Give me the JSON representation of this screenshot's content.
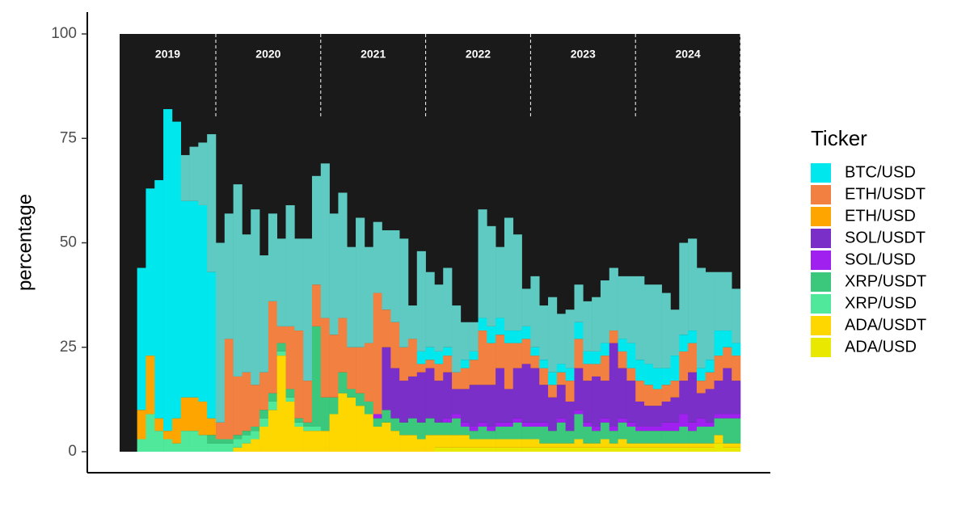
{
  "chart_data": {
    "type": "stacked-bar",
    "ylabel": "percentage",
    "legend_title": "Ticker",
    "legend": "right",
    "ylim": [
      0,
      100
    ],
    "yticks": [
      0,
      25,
      50,
      75,
      100
    ],
    "facets": [
      "2019",
      "2020",
      "2021",
      "2022",
      "2023",
      "2024"
    ],
    "series": [
      {
        "name": "BTC/USD",
        "color": "#00e8ee",
        "values": [
          [
            0,
            0,
            34,
            40,
            57,
            77,
            71,
            47,
            47,
            47,
            35
          ],
          [
            0,
            0,
            0,
            0,
            0,
            0,
            0,
            0,
            0,
            0,
            0,
            0
          ],
          [
            0,
            0,
            0,
            0,
            0,
            0,
            0,
            0,
            0,
            0,
            0,
            3
          ],
          [
            3,
            3,
            2,
            0,
            2,
            2,
            3,
            4,
            4,
            3,
            3,
            3
          ],
          [
            2,
            2,
            3,
            2,
            3,
            4,
            3,
            3,
            3,
            0,
            3,
            6
          ],
          [
            5,
            5,
            5,
            4,
            6,
            4,
            3,
            3,
            3,
            6,
            4,
            3
          ]
        ]
      },
      {
        "name": "ETH/USDT",
        "color": "#f28040",
        "values": [
          [
            0,
            0,
            0,
            0,
            0,
            0,
            0,
            0,
            0,
            0,
            0
          ],
          [
            4,
            24,
            14,
            14,
            10,
            9,
            22,
            4,
            15,
            21,
            10,
            10
          ],
          [
            19,
            15,
            13,
            10,
            11,
            14,
            29,
            9,
            11,
            8,
            9,
            2
          ],
          [
            2,
            4,
            4,
            4,
            5,
            6,
            13,
            10,
            8,
            11,
            6,
            6
          ],
          [
            3,
            4,
            3,
            3,
            5,
            7,
            4,
            3,
            6,
            3,
            4,
            3
          ],
          [
            5,
            5,
            4,
            4,
            4,
            7,
            7,
            3,
            4,
            6,
            5,
            6
          ]
        ]
      },
      {
        "name": "ETH/USD",
        "color": "#ffa500",
        "values": [
          [
            0,
            0,
            7,
            14,
            3,
            2,
            6,
            8,
            8,
            8,
            4
          ],
          [
            0,
            0,
            0,
            0,
            0,
            0,
            0,
            0,
            0,
            0,
            0,
            0
          ],
          [
            0,
            0,
            0,
            0,
            0,
            0,
            0,
            0,
            0,
            0,
            0,
            0
          ],
          [
            0,
            0,
            0,
            0,
            0,
            0,
            0,
            0,
            0,
            0,
            0,
            0
          ],
          [
            0,
            0,
            0,
            0,
            0,
            0,
            0,
            0,
            0,
            0,
            0,
            0
          ],
          [
            0,
            0,
            0,
            0,
            0,
            0,
            0,
            0,
            0,
            0,
            0,
            0
          ]
        ]
      },
      {
        "name": "SOL/USDT",
        "color": "#7b2fc9",
        "values": [
          [
            0,
            0,
            0,
            0,
            0,
            0,
            0,
            0,
            0,
            0,
            0
          ],
          [
            0,
            0,
            0,
            0,
            0,
            0,
            0,
            0,
            0,
            0,
            0,
            0
          ],
          [
            0,
            0,
            0,
            0,
            0,
            0,
            0,
            15,
            12,
            10,
            10,
            12
          ],
          [
            12,
            10,
            11,
            6,
            8,
            10,
            9,
            10,
            13,
            8,
            12,
            14
          ],
          [
            13,
            9,
            8,
            8,
            7,
            10,
            10,
            12,
            9,
            20,
            12,
            10
          ],
          [
            6,
            5,
            5,
            5,
            6,
            8,
            12,
            6,
            8,
            8,
            11,
            8
          ]
        ]
      },
      {
        "name": "SOL/USD",
        "color": "#a020f0",
        "values": [
          [
            0,
            0,
            0,
            0,
            0,
            0,
            0,
            0,
            0,
            0,
            0
          ],
          [
            0,
            0,
            0,
            0,
            0,
            0,
            0,
            0,
            0,
            0,
            0,
            0
          ],
          [
            0,
            0,
            0,
            0,
            0,
            0,
            1,
            0,
            0,
            0,
            0,
            0
          ],
          [
            0,
            0,
            1,
            1,
            1,
            1,
            1,
            1,
            1,
            1,
            1,
            1
          ],
          [
            1,
            1,
            0,
            1,
            0,
            1,
            1,
            1,
            1,
            1,
            1,
            1
          ],
          [
            1,
            1,
            1,
            2,
            2,
            3,
            2,
            2,
            1,
            1,
            1,
            1
          ]
        ]
      },
      {
        "name": "XRP/USDT",
        "color": "#3cc87c",
        "values": [
          [
            0,
            0,
            0,
            0,
            0,
            0,
            0,
            0,
            0,
            0,
            2
          ],
          [
            1,
            1,
            1,
            1,
            1,
            2,
            2,
            2,
            2,
            1,
            1,
            24
          ],
          [
            8,
            4,
            5,
            2,
            3,
            3,
            2,
            3,
            3,
            3,
            4,
            4
          ],
          [
            4,
            3,
            3,
            4,
            2,
            2,
            3,
            2,
            3,
            3,
            4,
            3
          ],
          [
            3,
            4,
            3,
            5,
            3,
            6,
            4,
            3,
            4,
            3,
            4,
            4
          ],
          [
            3,
            3,
            3,
            3,
            3,
            4,
            3,
            4,
            4,
            4,
            6,
            6
          ]
        ]
      },
      {
        "name": "XRP/USD",
        "color": "#50e89a",
        "values": [
          [
            0,
            0,
            3,
            9,
            5,
            3,
            2,
            5,
            5,
            4,
            2
          ],
          [
            2,
            2,
            2,
            2,
            2,
            2,
            2,
            1,
            1,
            1,
            1,
            1
          ],
          [
            0,
            0,
            0,
            0,
            0,
            0,
            0,
            0,
            0,
            0,
            0,
            0
          ],
          [
            0,
            0,
            0,
            0,
            0,
            0,
            0,
            0,
            0,
            0,
            0,
            0
          ],
          [
            0,
            0,
            0,
            0,
            0,
            0,
            0,
            0,
            0,
            0,
            0,
            0
          ],
          [
            0,
            0,
            0,
            0,
            0,
            0,
            0,
            0,
            0,
            0,
            0,
            0
          ]
        ]
      },
      {
        "name": "ADA/USDT",
        "color": "#ffd700",
        "values": [
          [
            0,
            0,
            0,
            0,
            0,
            0,
            0,
            0,
            0,
            0,
            0
          ],
          [
            0,
            0,
            1,
            2,
            3,
            6,
            10,
            23,
            12,
            6,
            5,
            5
          ],
          [
            5,
            9,
            14,
            13,
            11,
            9,
            6,
            7,
            5,
            4,
            4,
            3
          ],
          [
            4,
            3,
            3,
            3,
            3,
            2,
            2,
            2,
            2,
            2,
            2,
            2
          ],
          [
            2,
            1,
            1,
            1,
            1,
            2,
            1,
            1,
            2,
            1,
            2,
            1
          ],
          [
            1,
            1,
            1,
            1,
            1,
            1,
            1,
            1,
            1,
            2,
            1,
            1
          ]
        ]
      },
      {
        "name": "ADA/USD",
        "color": "#e8e800",
        "values": [
          [
            0,
            0,
            0,
            0,
            0,
            0,
            0,
            0,
            0,
            0,
            0
          ],
          [
            0,
            0,
            0,
            0,
            0,
            0,
            0,
            0,
            0,
            0,
            0,
            0
          ],
          [
            0,
            0,
            0,
            0,
            0,
            0,
            0,
            0,
            0,
            0,
            0,
            0
          ],
          [
            0,
            1,
            1,
            1,
            1,
            1,
            1,
            1,
            1,
            1,
            1,
            1
          ],
          [
            1,
            1,
            1,
            1,
            1,
            1,
            1,
            1,
            1,
            1,
            1,
            1
          ],
          [
            1,
            1,
            1,
            1,
            1,
            1,
            1,
            1,
            1,
            2,
            1,
            1
          ]
        ]
      },
      {
        "color": "#5ecac2",
        "values": [
          [
            0,
            0,
            0,
            0,
            0,
            0,
            0,
            11,
            13,
            15,
            33
          ],
          [
            43,
            30,
            46,
            33,
            42,
            28,
            21,
            21,
            29,
            22,
            34,
            26
          ],
          [
            37,
            29,
            30,
            24,
            31,
            23,
            17,
            19,
            22,
            26,
            8,
            24
          ],
          [
            18,
            16,
            19,
            16,
            9,
            7,
            26,
            24,
            17,
            27,
            23,
            9
          ],
          [
            17,
            13,
            18,
            12,
            14,
            9,
            12,
            13,
            15,
            15,
            15,
            16
          ],
          [
            20,
            19,
            20,
            18,
            11,
            22,
            22,
            24,
            21,
            14,
            14,
            13
          ]
        ]
      }
    ]
  }
}
